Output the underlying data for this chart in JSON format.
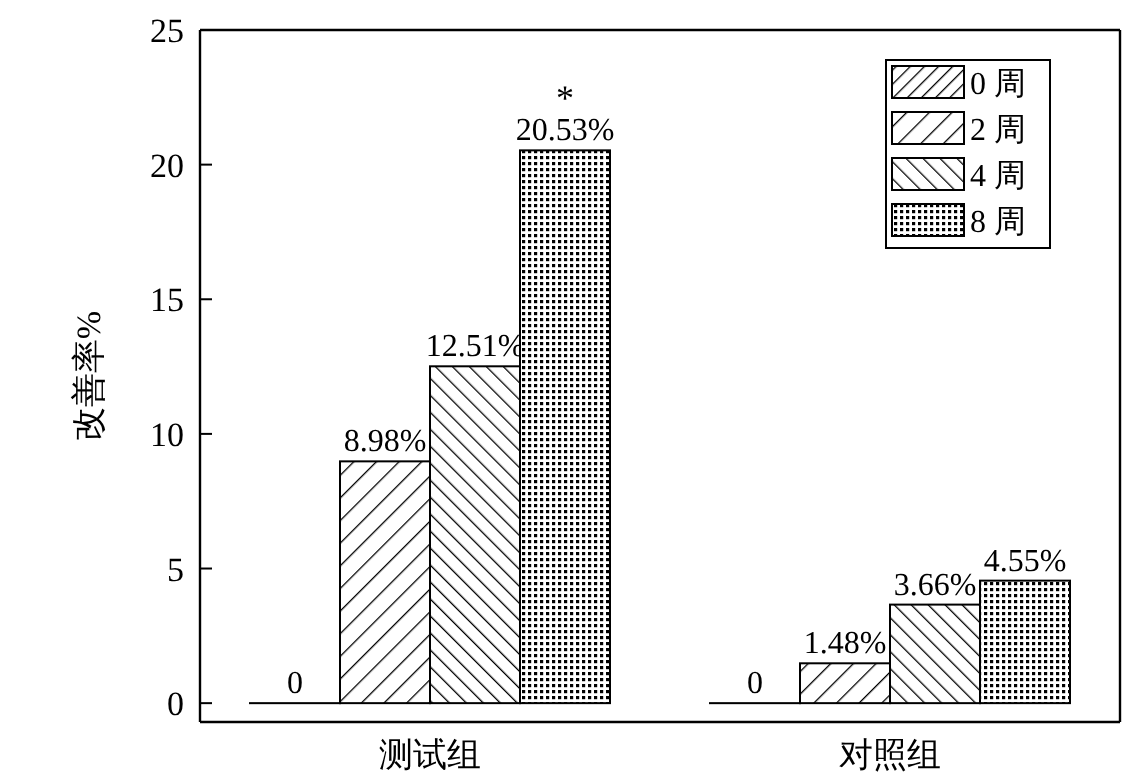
{
  "chart_data": {
    "type": "bar",
    "ylabel": "改善率%",
    "categories": [
      "测试组",
      "对照组"
    ],
    "series": [
      {
        "name": "0 周",
        "color": "#000000",
        "values": [
          0,
          0
        ],
        "value_labels": [
          "0",
          "0"
        ]
      },
      {
        "name": "2 周",
        "color": "#000000",
        "values": [
          8.98,
          1.48
        ],
        "value_labels": [
          "8.98%",
          "1.48%"
        ]
      },
      {
        "name": "4 周",
        "color": "#000000",
        "values": [
          12.51,
          3.66
        ],
        "value_labels": [
          "12.51%",
          "3.66%"
        ]
      },
      {
        "name": "8 周",
        "color": "#000000",
        "values": [
          20.53,
          4.55
        ],
        "value_labels": [
          "20.53%",
          "4.55%"
        ]
      }
    ],
    "ylim": [
      -0.7,
      25
    ],
    "yticks": [
      0,
      5,
      10,
      15,
      20,
      25
    ],
    "grid": false,
    "legend": "top right",
    "annotations": [
      "*"
    ]
  }
}
